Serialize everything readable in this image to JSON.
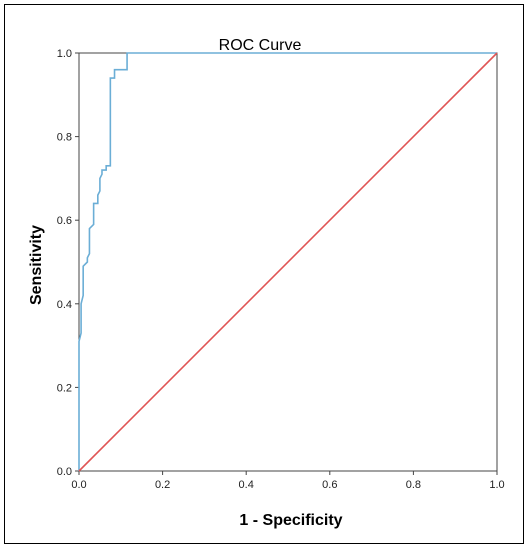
{
  "chart_data": {
    "type": "line",
    "title": "ROC Curve",
    "xlabel": "1 - Specificity",
    "ylabel": "Sensitivity",
    "xlim": [
      0,
      1
    ],
    "ylim": [
      0,
      1
    ],
    "xticks": [
      "0.0",
      "0.2",
      "0.4",
      "0.6",
      "0.8",
      "1.0"
    ],
    "yticks": [
      "0.0",
      "0.2",
      "0.4",
      "0.6",
      "0.8",
      "1.0"
    ],
    "grid": false,
    "legend": "none",
    "series": [
      {
        "color": "#6baed6",
        "x": [
          0,
          0,
          0.005,
          0.005,
          0.01,
          0.01,
          0.02,
          0.02,
          0.025,
          0.025,
          0.035,
          0.035,
          0.045,
          0.045,
          0.05,
          0.05,
          0.055,
          0.055,
          0.065,
          0.065,
          0.075,
          0.075,
          0.085,
          0.085,
          0.115,
          0.115,
          1.0
        ],
        "y": [
          0,
          0.31,
          0.33,
          0.4,
          0.42,
          0.49,
          0.5,
          0.51,
          0.52,
          0.58,
          0.59,
          0.64,
          0.64,
          0.66,
          0.67,
          0.7,
          0.71,
          0.72,
          0.72,
          0.73,
          0.73,
          0.94,
          0.94,
          0.96,
          0.96,
          1.0,
          1.0
        ]
      },
      {
        "color": "#e05555",
        "x": [
          0,
          1
        ],
        "y": [
          0,
          1
        ]
      }
    ]
  }
}
